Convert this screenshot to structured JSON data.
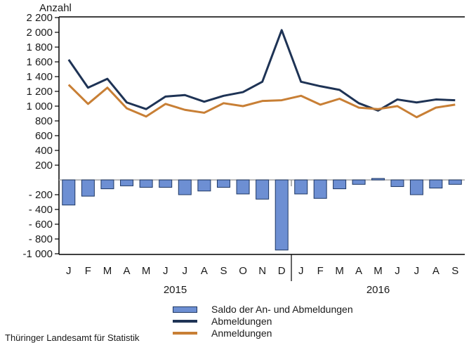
{
  "page": {
    "source": "Thüringer Landesamt für Statistik"
  },
  "chart_data": {
    "type": "combo",
    "title": "Anzahl",
    "categories": [
      "J",
      "F",
      "M",
      "A",
      "M",
      "J",
      "J",
      "A",
      "S",
      "O",
      "N",
      "D",
      "J",
      "F",
      "M",
      "A",
      "M",
      "J",
      "J",
      "A",
      "S"
    ],
    "year_groups": [
      {
        "label": "2015",
        "months": 12
      },
      {
        "label": "2016",
        "months": 9
      }
    ],
    "ylim": [
      -1000,
      2200
    ],
    "ytick_step": 200,
    "yticks": [
      {
        "v": 2200,
        "label": "2 200"
      },
      {
        "v": 2000,
        "label": "2 000"
      },
      {
        "v": 1800,
        "label": "1 800"
      },
      {
        "v": 1600,
        "label": "1 600"
      },
      {
        "v": 1400,
        "label": "1 400"
      },
      {
        "v": 1200,
        "label": "1 200"
      },
      {
        "v": 1000,
        "label": "1 000"
      },
      {
        "v": 800,
        "label": "800"
      },
      {
        "v": 600,
        "label": "600"
      },
      {
        "v": 400,
        "label": "400"
      },
      {
        "v": 200,
        "label": "200"
      },
      {
        "v": -200,
        "label": "- 200"
      },
      {
        "v": -400,
        "label": "- 400"
      },
      {
        "v": -600,
        "label": "- 600"
      },
      {
        "v": -800,
        "label": "- 800"
      },
      {
        "v": -1000,
        "label": "-1 000"
      }
    ],
    "grid": "zero-line-only",
    "legend_position": "bottom",
    "series": [
      {
        "name": "Saldo der An- und Abmeldungen",
        "type": "bar",
        "color": "#6d8fd3",
        "border_color": "#1f3864",
        "values": [
          -340,
          -220,
          -120,
          -80,
          -100,
          -100,
          -200,
          -150,
          -100,
          -190,
          -260,
          -950,
          -190,
          -250,
          -120,
          -60,
          20,
          -90,
          -200,
          -110,
          -60
        ]
      },
      {
        "name": "Abmeldungen",
        "type": "line",
        "color": "#1e3355",
        "values": [
          1630,
          1250,
          1370,
          1050,
          960,
          1130,
          1150,
          1060,
          1140,
          1190,
          1330,
          2030,
          1330,
          1270,
          1220,
          1040,
          940,
          1090,
          1050,
          1090,
          1080
        ]
      },
      {
        "name": "Anmeldungen",
        "type": "line",
        "color": "#c87f35",
        "values": [
          1290,
          1030,
          1250,
          970,
          860,
          1030,
          950,
          910,
          1040,
          1000,
          1070,
          1080,
          1140,
          1020,
          1100,
          980,
          960,
          1000,
          850,
          980,
          1020
        ]
      }
    ],
    "colors": {
      "axis": "#000000",
      "zero_line": "#a6a6a6",
      "text": "#1a1a1a"
    }
  },
  "legend": {
    "items": [
      {
        "label": "Saldo der An- und Abmeldungen",
        "swatch": "bar",
        "color": "#6d8fd3",
        "border": "#1f3864"
      },
      {
        "label": "Abmeldungen",
        "swatch": "line",
        "color": "#1e3355"
      },
      {
        "label": "Anmeldungen",
        "swatch": "line",
        "color": "#c87f35"
      }
    ]
  }
}
